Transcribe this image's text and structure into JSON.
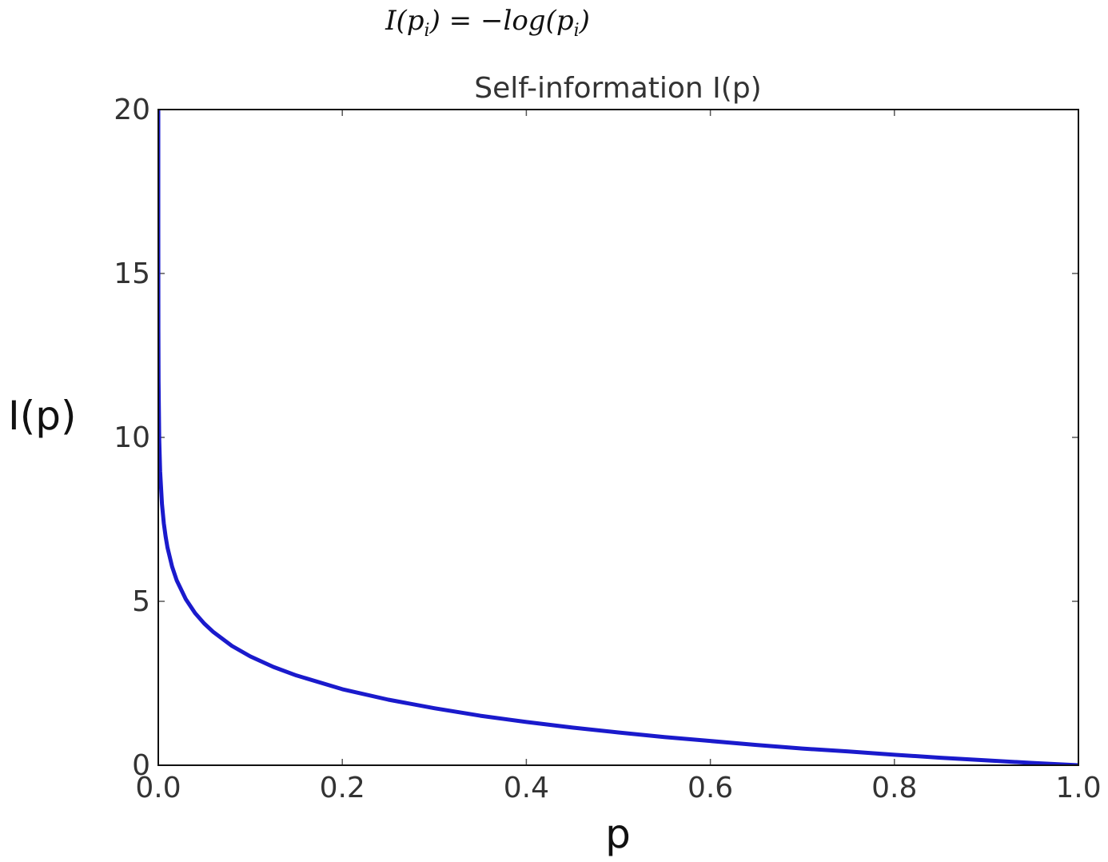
{
  "formula": {
    "lhs": "I(p",
    "sub1": "i",
    "mid": ") = −log(p",
    "sub2": "i",
    "rhs": ")"
  },
  "chart_data": {
    "type": "line",
    "title": "Self-information I(p)",
    "xlabel": "p",
    "ylabel": "I(p)",
    "xlim": [
      0.0,
      1.0
    ],
    "ylim": [
      0,
      20
    ],
    "xticks": [
      0.0,
      0.2,
      0.4,
      0.6,
      0.8,
      1.0
    ],
    "xtick_labels": [
      "0.0",
      "0.2",
      "0.4",
      "0.6",
      "0.8",
      "1.0"
    ],
    "yticks": [
      0,
      5,
      10,
      15,
      20
    ],
    "ytick_labels": [
      "0",
      "5",
      "10",
      "15",
      "20"
    ],
    "grid": false,
    "series": [
      {
        "color": "#1a1acc",
        "x": [
          1e-07,
          1e-06,
          1e-05,
          0.0001,
          0.0003,
          0.001,
          0.002,
          0.004,
          0.006,
          0.008,
          0.01,
          0.015,
          0.02,
          0.03,
          0.04,
          0.05,
          0.06,
          0.08,
          0.1,
          0.125,
          0.15,
          0.2,
          0.25,
          0.3,
          0.35,
          0.4,
          0.45,
          0.5,
          0.55,
          0.6,
          0.65,
          0.7,
          0.75,
          0.8,
          0.85,
          0.9,
          0.95,
          1.0
        ],
        "y": [
          23.25,
          19.93,
          16.61,
          13.29,
          11.7,
          9.97,
          8.97,
          7.97,
          7.38,
          6.97,
          6.64,
          6.06,
          5.64,
          5.06,
          4.64,
          4.32,
          4.06,
          3.64,
          3.32,
          3.0,
          2.74,
          2.32,
          2.0,
          1.74,
          1.51,
          1.32,
          1.15,
          1.0,
          0.86,
          0.74,
          0.62,
          0.51,
          0.42,
          0.32,
          0.23,
          0.15,
          0.07,
          0.0
        ]
      }
    ]
  }
}
